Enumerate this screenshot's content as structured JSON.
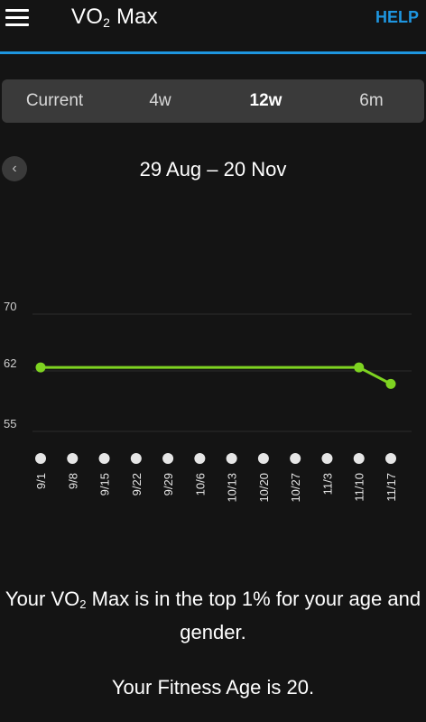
{
  "header": {
    "title_main": "VO",
    "title_sub": "2",
    "title_tail": " Max",
    "help_label": "HELP",
    "accent_color": "#1e96e0",
    "menu_icon": "hamburger-menu-icon"
  },
  "segments": [
    {
      "label": "Current",
      "active": false
    },
    {
      "label": "4w",
      "active": false
    },
    {
      "label": "12w",
      "active": true
    },
    {
      "label": "6m",
      "active": false
    }
  ],
  "date_nav": {
    "prev_icon": "chevron-left-icon",
    "range": "29 Aug – 20 Nov"
  },
  "chart_data": {
    "type": "line",
    "color": "#7ed321",
    "x": [
      "9/1",
      "9/8",
      "9/15",
      "9/22",
      "9/29",
      "10/6",
      "10/13",
      "10/20",
      "10/27",
      "11/3",
      "11/10",
      "11/17"
    ],
    "y_ticks": [
      70,
      62,
      55
    ],
    "ylim": [
      55,
      70
    ],
    "grid": true,
    "points": [
      {
        "x": "9/1",
        "value": 62.5
      },
      {
        "x": "11/10",
        "value": 62.5
      },
      {
        "x": "11/17",
        "value": 60.5
      }
    ]
  },
  "summary": {
    "percentile_pre": "Your VO",
    "percentile_sub": "2",
    "percentile_post": " Max is in the top 1% for your age and gender.",
    "fitness_age": "Your Fitness Age is 20."
  }
}
